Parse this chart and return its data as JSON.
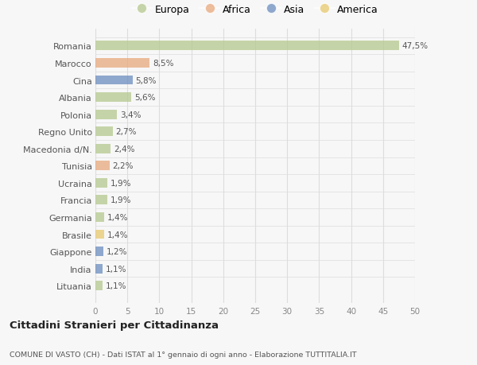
{
  "categories": [
    "Romania",
    "Marocco",
    "Cina",
    "Albania",
    "Polonia",
    "Regno Unito",
    "Macedonia d/N.",
    "Tunisia",
    "Ucraina",
    "Francia",
    "Germania",
    "Brasile",
    "Giappone",
    "India",
    "Lituania"
  ],
  "values": [
    47.5,
    8.5,
    5.8,
    5.6,
    3.4,
    2.7,
    2.4,
    2.2,
    1.9,
    1.9,
    1.4,
    1.4,
    1.2,
    1.1,
    1.1
  ],
  "labels": [
    "47,5%",
    "8,5%",
    "5,8%",
    "5,6%",
    "3,4%",
    "2,7%",
    "2,4%",
    "2,2%",
    "1,9%",
    "1,9%",
    "1,4%",
    "1,4%",
    "1,2%",
    "1,1%",
    "1,1%"
  ],
  "bar_colors": [
    "#b5c98e",
    "#e8a87c",
    "#6b8cbf",
    "#b5c98e",
    "#b5c98e",
    "#b5c98e",
    "#b5c98e",
    "#e8a87c",
    "#b5c98e",
    "#b5c98e",
    "#b5c98e",
    "#e8c96e",
    "#6b8cbf",
    "#6b8cbf",
    "#b5c98e"
  ],
  "legend_labels": [
    "Europa",
    "Africa",
    "Asia",
    "America"
  ],
  "legend_colors": [
    "#b5c98e",
    "#e8a87c",
    "#6b8cbf",
    "#e8c96e"
  ],
  "xlim": [
    0,
    50
  ],
  "xticks": [
    0,
    5,
    10,
    15,
    20,
    25,
    30,
    35,
    40,
    45,
    50
  ],
  "title": "Cittadini Stranieri per Cittadinanza",
  "subtitle": "COMUNE DI VASTO (CH) - Dati ISTAT al 1° gennaio di ogni anno - Elaborazione TUTTITALIA.IT",
  "background_color": "#f7f7f7",
  "grid_color": "#dddddd",
  "bar_alpha": 0.75
}
